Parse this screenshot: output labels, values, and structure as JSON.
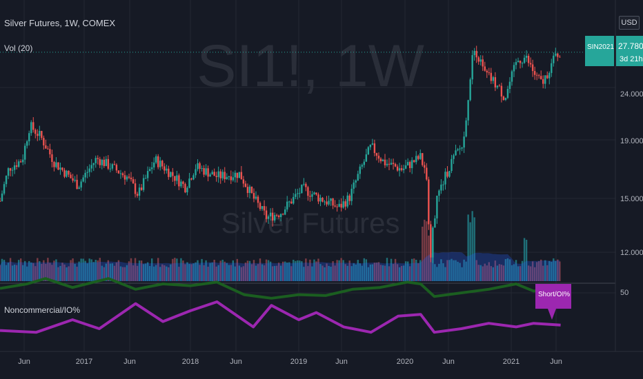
{
  "header": {
    "title": "Silver Futures, 1W, COMEX",
    "vol_label": "Vol (20)",
    "indicator_label": "Noncommercial/IO%"
  },
  "watermark": {
    "symbol": "SI1!, 1W",
    "name": "Silver Futures"
  },
  "price_axis": {
    "currency": "USD",
    "ticks": [
      "24.000",
      "19.000",
      "15.000",
      "12.000"
    ],
    "sub_tick": "50"
  },
  "last_price": {
    "symbol": "SIN2021",
    "price": "27.780",
    "countdown": "3d 21h"
  },
  "indicator_tag": "Short/OI%",
  "time_axis": {
    "ticks": [
      "Jun",
      "2017",
      "Jun",
      "2018",
      "Jun",
      "2019",
      "Jun",
      "2020",
      "Jun",
      "2021",
      "Jun"
    ]
  },
  "colors": {
    "background": "#161a25",
    "up": "#26a69a",
    "down": "#ef5350",
    "volume_ma": "#2962ff",
    "long": "#1b5e20",
    "short": "#9c27b0",
    "price_line": "#26a69a"
  },
  "chart_data": {
    "type": "candlestick",
    "symbol": "SI1!",
    "interval": "1W",
    "x_range": [
      "2016-04",
      "2021-07"
    ],
    "y_scale": "log",
    "ylim": [
      10.8,
      32.5
    ],
    "anchors": [
      [
        "2016-04-01",
        15.0
      ],
      [
        "2016-05-01",
        17.2
      ],
      [
        "2016-06-15",
        17.8
      ],
      [
        "2016-07-10",
        20.5
      ],
      [
        "2016-08-15",
        19.6
      ],
      [
        "2016-10-01",
        17.6
      ],
      [
        "2016-12-20",
        16.0
      ],
      [
        "2017-02-20",
        17.9
      ],
      [
        "2017-06-01",
        16.6
      ],
      [
        "2017-07-10",
        15.4
      ],
      [
        "2017-09-05",
        17.8
      ],
      [
        "2017-12-15",
        15.9
      ],
      [
        "2018-01-20",
        17.3
      ],
      [
        "2018-04-01",
        16.6
      ],
      [
        "2018-06-15",
        16.8
      ],
      [
        "2018-08-01",
        15.2
      ],
      [
        "2018-09-15",
        14.0
      ],
      [
        "2018-11-01",
        14.3
      ],
      [
        "2019-01-15",
        15.8
      ],
      [
        "2019-03-01",
        15.3
      ],
      [
        "2019-05-15",
        14.6
      ],
      [
        "2019-06-20",
        15.2
      ],
      [
        "2019-09-01",
        18.8
      ],
      [
        "2019-10-15",
        17.6
      ],
      [
        "2019-12-15",
        17.1
      ],
      [
        "2020-02-15",
        18.0
      ],
      [
        "2020-03-05",
        16.5
      ],
      [
        "2020-03-19",
        12.0
      ],
      [
        "2020-04-10",
        15.2
      ],
      [
        "2020-06-01",
        17.8
      ],
      [
        "2020-07-08",
        19.0
      ],
      [
        "2020-07-29",
        24.5
      ],
      [
        "2020-08-10",
        28.8
      ],
      [
        "2020-09-15",
        25.5
      ],
      [
        "2020-10-20",
        24.5
      ],
      [
        "2020-11-25",
        23.0
      ],
      [
        "2021-01-05",
        26.8
      ],
      [
        "2021-02-02",
        27.2
      ],
      [
        "2021-03-10",
        25.0
      ],
      [
        "2021-03-31",
        24.4
      ],
      [
        "2021-05-15",
        27.4
      ],
      [
        "2021-05-31",
        27.78
      ]
    ],
    "volume": {
      "label": "Vol (20)"
    },
    "indicator": {
      "label": "Noncommercial/IO%",
      "y_tick": 50,
      "series": [
        {
          "name": "",
          "color": "#1b5e20",
          "points": [
            [
              "2016-04-01",
              55
            ],
            [
              "2016-07-01",
              60
            ],
            [
              "2016-09-01",
              66
            ],
            [
              "2016-12-01",
              56
            ],
            [
              "2017-04-01",
              66
            ],
            [
              "2017-07-01",
              54
            ],
            [
              "2017-10-01",
              60
            ],
            [
              "2018-01-01",
              58
            ],
            [
              "2018-04-01",
              62
            ],
            [
              "2018-07-01",
              48
            ],
            [
              "2018-10-01",
              44
            ],
            [
              "2019-01-01",
              48
            ],
            [
              "2019-04-01",
              47
            ],
            [
              "2019-07-01",
              54
            ],
            [
              "2019-10-01",
              56
            ],
            [
              "2020-01-01",
              62
            ],
            [
              "2020-02-15",
              60
            ],
            [
              "2020-04-01",
              46
            ],
            [
              "2020-07-01",
              50
            ],
            [
              "2020-10-01",
              54
            ],
            [
              "2021-01-01",
              60
            ],
            [
              "2021-03-01",
              52
            ],
            [
              "2021-05-31",
              55
            ]
          ]
        },
        {
          "name": "Short/OI%",
          "color": "#9c27b0",
          "points": [
            [
              "2016-04-01",
              8
            ],
            [
              "2016-08-01",
              6
            ],
            [
              "2016-12-01",
              20
            ],
            [
              "2017-03-01",
              10
            ],
            [
              "2017-07-01",
              38
            ],
            [
              "2017-10-01",
              18
            ],
            [
              "2018-01-01",
              30
            ],
            [
              "2018-04-01",
              40
            ],
            [
              "2018-08-01",
              12
            ],
            [
              "2018-10-01",
              36
            ],
            [
              "2019-01-01",
              20
            ],
            [
              "2019-03-01",
              28
            ],
            [
              "2019-06-01",
              12
            ],
            [
              "2019-09-01",
              6
            ],
            [
              "2019-12-01",
              24
            ],
            [
              "2020-02-15",
              26
            ],
            [
              "2020-04-01",
              6
            ],
            [
              "2020-07-01",
              10
            ],
            [
              "2020-10-01",
              16
            ],
            [
              "2021-01-01",
              12
            ],
            [
              "2021-03-01",
              16
            ],
            [
              "2021-05-31",
              14
            ]
          ]
        }
      ]
    }
  }
}
